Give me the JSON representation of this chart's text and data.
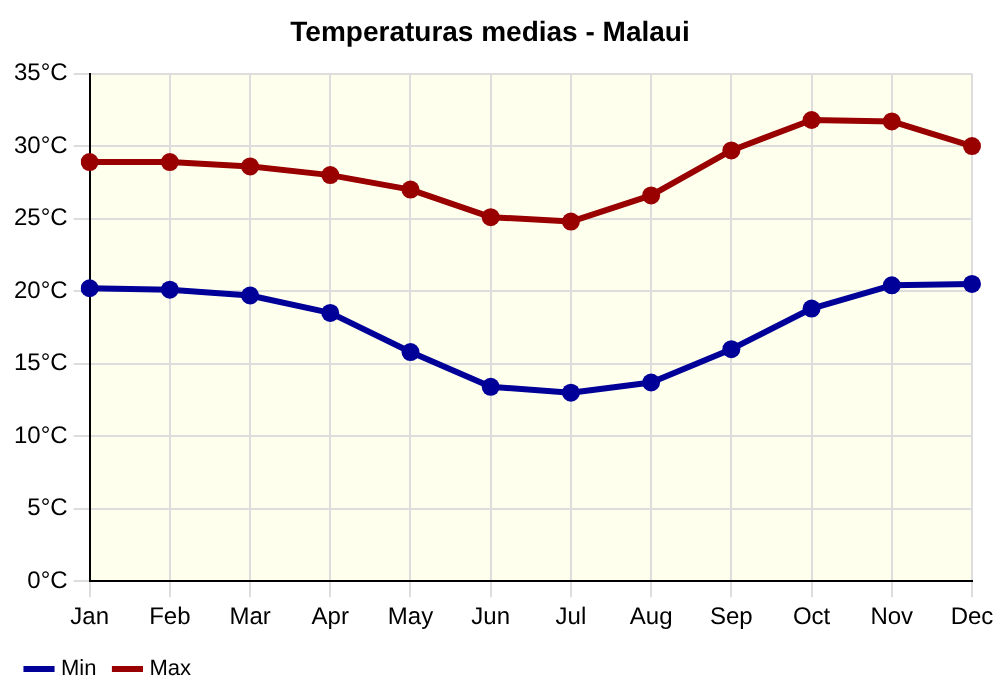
{
  "chart_data": {
    "type": "line",
    "title": "Temperaturas medias - Malaui",
    "categories": [
      "Jan",
      "Feb",
      "Mar",
      "Apr",
      "May",
      "Jun",
      "Jul",
      "Aug",
      "Sep",
      "Oct",
      "Nov",
      "Dec"
    ],
    "series": [
      {
        "name": "Min",
        "color": "#000099",
        "values": [
          20.2,
          20.1,
          19.7,
          18.5,
          15.8,
          13.4,
          13.0,
          13.7,
          16.0,
          18.8,
          20.4,
          20.5
        ]
      },
      {
        "name": "Max",
        "color": "#990000",
        "values": [
          28.9,
          28.9,
          28.6,
          28.0,
          27.0,
          25.1,
          24.8,
          26.6,
          29.7,
          31.8,
          31.7,
          30.0
        ]
      }
    ],
    "ylim": [
      0,
      35
    ],
    "yticks": [
      {
        "value": 0,
        "label": "0°C"
      },
      {
        "value": 5,
        "label": "5°C"
      },
      {
        "value": 10,
        "label": "10°C"
      },
      {
        "value": 15,
        "label": "15°C"
      },
      {
        "value": 20,
        "label": "20°C"
      },
      {
        "value": 25,
        "label": "25°C"
      },
      {
        "value": 30,
        "label": "30°C"
      },
      {
        "value": 35,
        "label": "35°C"
      }
    ],
    "grid": true,
    "legend": "bottom left",
    "marker": "circle",
    "line_style": "solid"
  }
}
